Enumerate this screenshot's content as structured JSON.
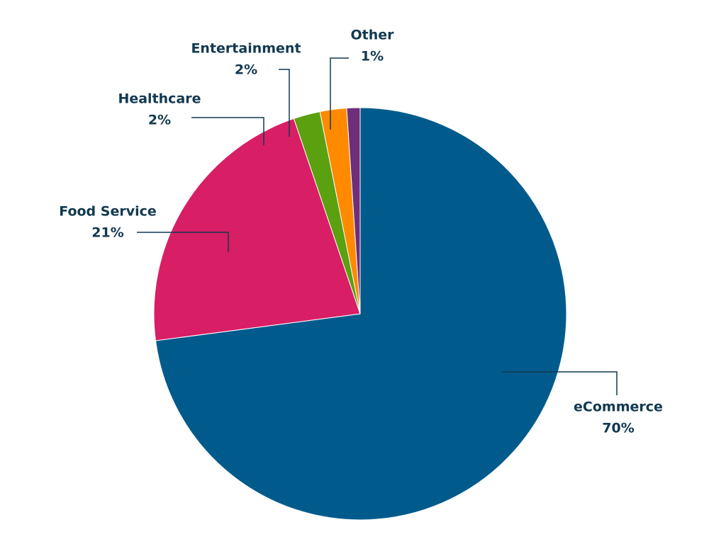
{
  "chart_data": {
    "type": "pie",
    "categories": [
      "eCommerce",
      "Food Service",
      "Healthcare",
      "Entertainment",
      "Other"
    ],
    "values": [
      70,
      21,
      2,
      2,
      1
    ],
    "value_labels": [
      "70%",
      "21%",
      "2%",
      "2%",
      "1%"
    ],
    "colors": [
      "#005b8c",
      "#d81e65",
      "#5aa00f",
      "#ff8a00",
      "#6f2e7a"
    ]
  }
}
